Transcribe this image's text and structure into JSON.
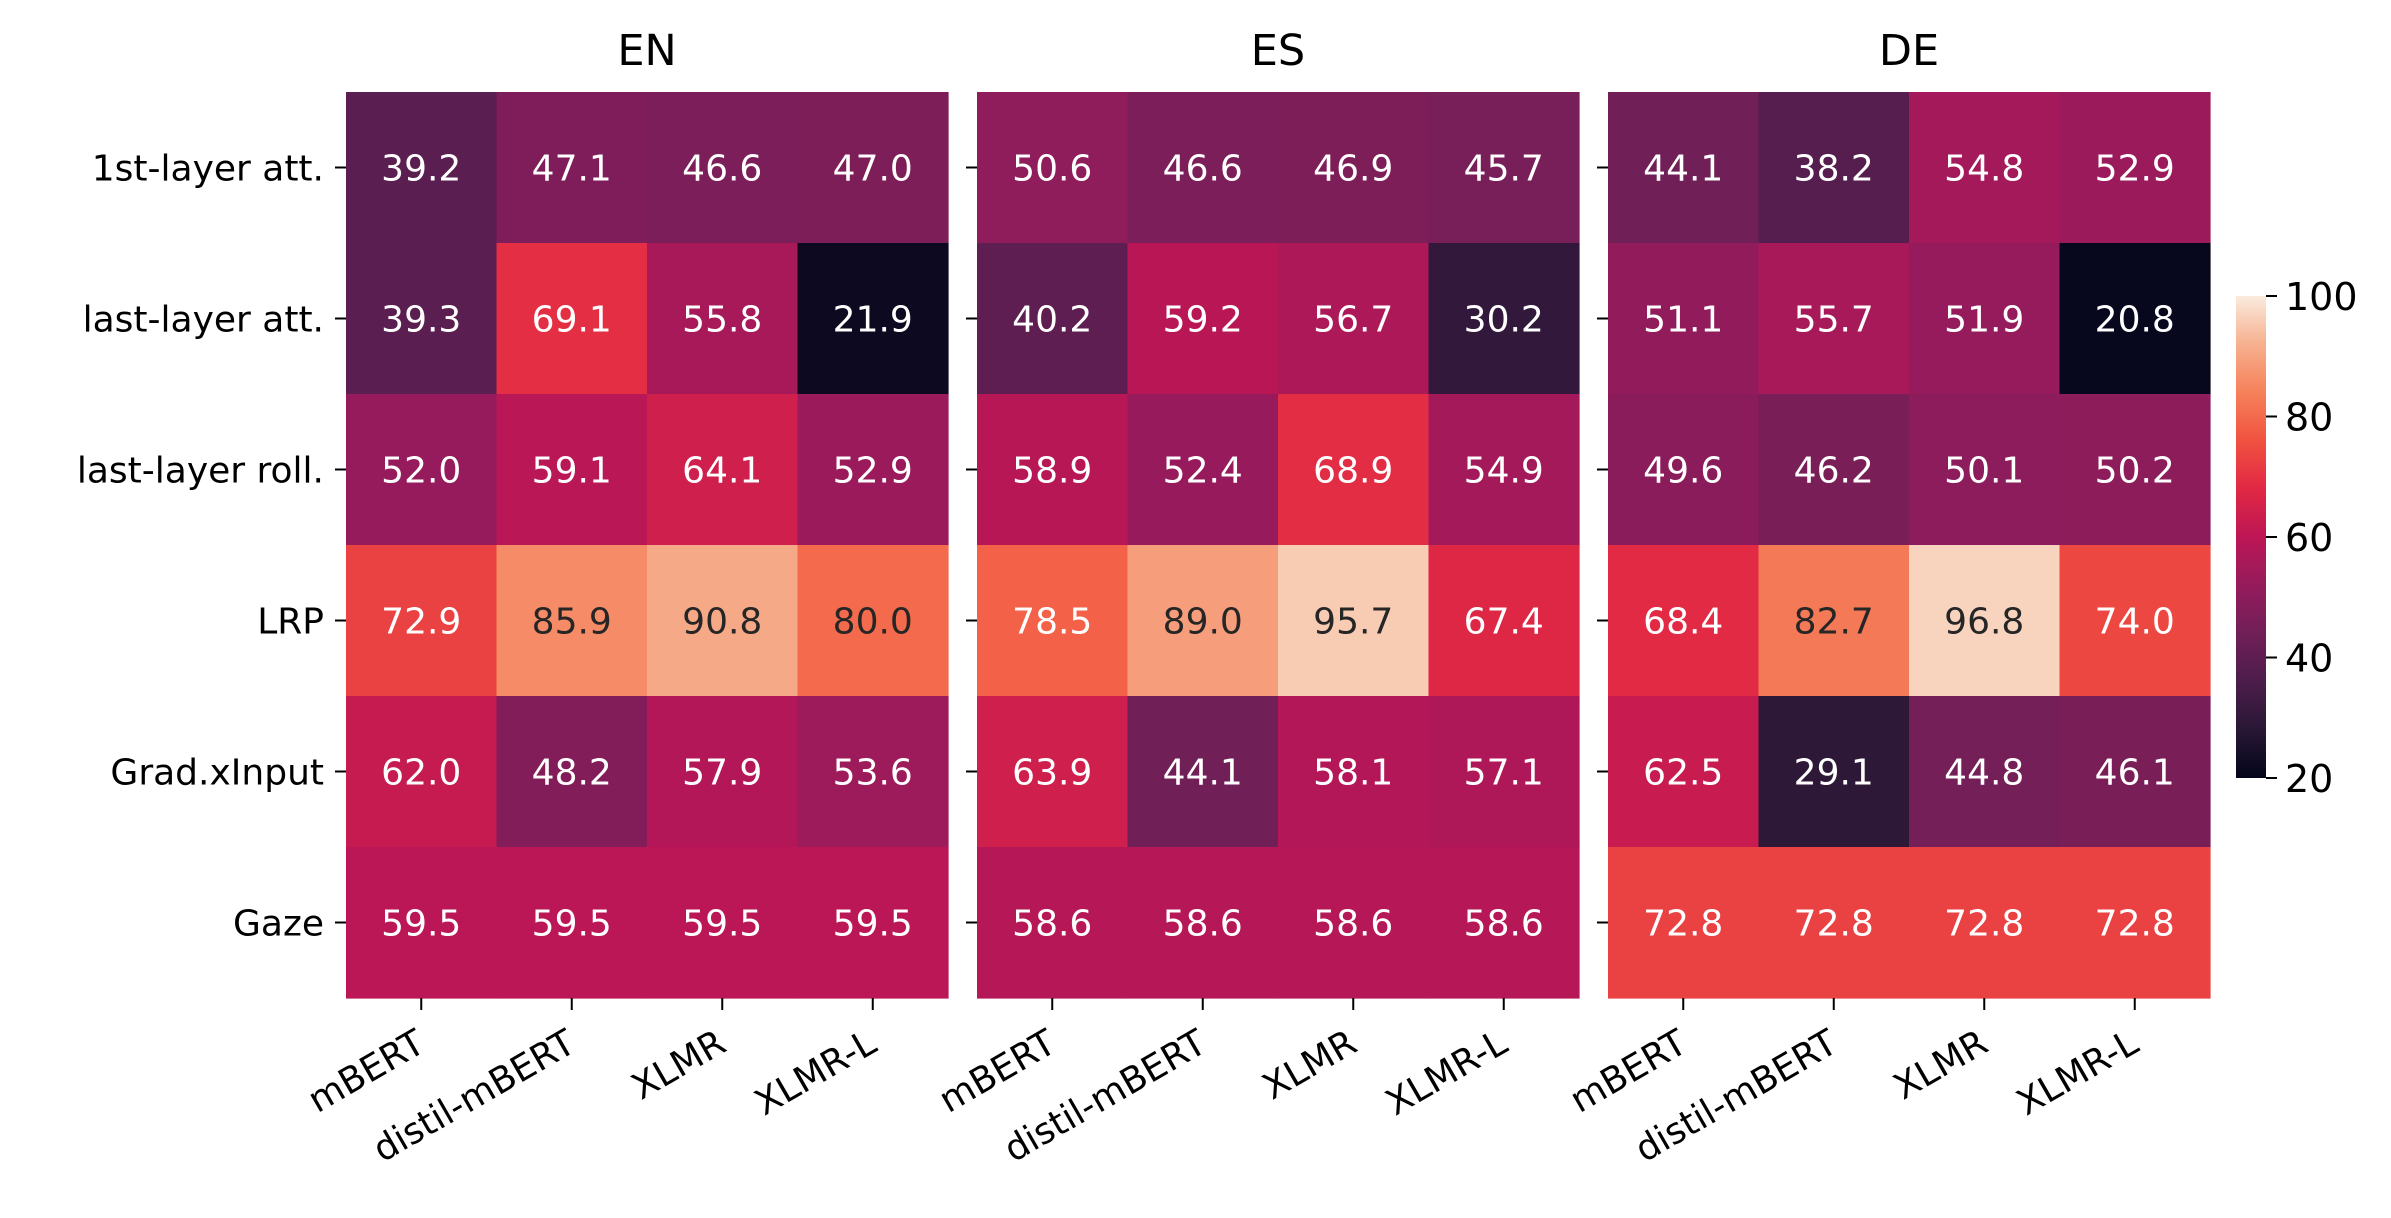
{
  "chart_data": {
    "type": "heatmap",
    "panels": [
      {
        "title": "EN",
        "values": [
          [
            39.2,
            47.1,
            46.6,
            47.0
          ],
          [
            39.3,
            69.1,
            55.8,
            21.9
          ],
          [
            52.0,
            59.1,
            64.1,
            52.9
          ],
          [
            72.9,
            85.9,
            90.8,
            80.0
          ],
          [
            62.0,
            48.2,
            57.9,
            53.6
          ],
          [
            59.5,
            59.5,
            59.5,
            59.5
          ]
        ]
      },
      {
        "title": "ES",
        "values": [
          [
            50.6,
            46.6,
            46.9,
            45.7
          ],
          [
            40.2,
            59.2,
            56.7,
            30.2
          ],
          [
            58.9,
            52.4,
            68.9,
            54.9
          ],
          [
            78.5,
            89.0,
            95.7,
            67.4
          ],
          [
            63.9,
            44.1,
            58.1,
            57.1
          ],
          [
            58.6,
            58.6,
            58.6,
            58.6
          ]
        ]
      },
      {
        "title": "DE",
        "values": [
          [
            44.1,
            38.2,
            54.8,
            52.9
          ],
          [
            51.1,
            55.7,
            51.9,
            20.8
          ],
          [
            49.6,
            46.2,
            50.1,
            50.2
          ],
          [
            68.4,
            82.7,
            96.8,
            74.0
          ],
          [
            62.5,
            29.1,
            44.8,
            46.1
          ],
          [
            72.8,
            72.8,
            72.8,
            72.8
          ]
        ]
      }
    ],
    "row_labels": [
      "1st-layer att.",
      "last-layer att.",
      "last-layer roll.",
      "LRP",
      "Grad.xInput",
      "Gaze"
    ],
    "col_labels": [
      "mBERT",
      "distil-mBERT",
      "XLMR",
      "XLMR-L"
    ],
    "colorbar": {
      "vmin": 20,
      "vmax": 100,
      "ticks": [
        "20",
        "40",
        "60",
        "80",
        "100"
      ],
      "colormap": "rocket"
    },
    "annotation_color_dark_threshold": 80
  }
}
